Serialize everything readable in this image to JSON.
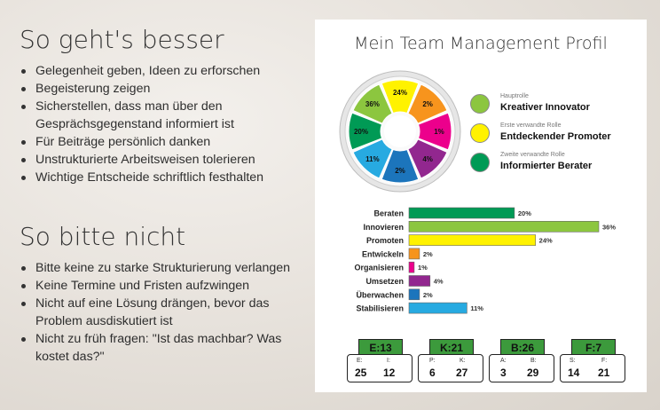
{
  "left": {
    "heading1": "So geht's besser",
    "list1": [
      "Gelegenheit geben, Ideen zu erforschen",
      "Begeisterung zeigen",
      "Sicherstellen, dass man über den Gesprächsgegenstand informiert ist",
      "Für Beiträge persönlich danken",
      "Unstrukturierte Arbeitsweisen tolerieren",
      "Wichtige Entscheide schriftlich festhalten"
    ],
    "heading2": "So bitte nicht",
    "list2": [
      "Bitte keine zu starke Strukturierung verlangen",
      "Keine Termine und Fristen aufzwingen",
      "Nicht auf eine Lösung drängen, bevor  das Problem ausdiskutiert  ist",
      "Nicht zu früh fragen: \"Ist das machbar? Was kostet das?\""
    ]
  },
  "card": {
    "title": "Mein Team Management Profil",
    "legend": [
      {
        "small": "Hauptrolle",
        "main": "Kreativer Innovator",
        "color": "#8cc63f"
      },
      {
        "small": "Erste verwandte Rolle",
        "main": "Entdeckender Promoter",
        "color": "#fff200"
      },
      {
        "small": "Zweite verwandte Rolle",
        "main": "Informierter Berater",
        "color": "#009a55"
      }
    ],
    "wheel": [
      {
        "label": "24%",
        "color": "#fff200"
      },
      {
        "label": "2%",
        "color": "#f7941d"
      },
      {
        "label": "1%",
        "color": "#ec008c"
      },
      {
        "label": "4%",
        "color": "#92278f"
      },
      {
        "label": "2%",
        "color": "#1c75bc"
      },
      {
        "label": "11%",
        "color": "#27aae1"
      },
      {
        "label": "20%",
        "color": "#009a55"
      },
      {
        "label": "36%",
        "color": "#8cc63f"
      }
    ],
    "stats": [
      {
        "head": "E:13",
        "l1": "E:",
        "v1": "25",
        "l2": "I:",
        "v2": "12"
      },
      {
        "head": "K:21",
        "l1": "P:",
        "v1": "6",
        "l2": "K:",
        "v2": "27"
      },
      {
        "head": "B:26",
        "l1": "A:",
        "v1": "3",
        "l2": "B:",
        "v2": "29"
      },
      {
        "head": "F:7",
        "l1": "S:",
        "v1": "14",
        "l2": "F:",
        "v2": "21"
      }
    ]
  },
  "chart_data": {
    "type": "bar",
    "orientation": "horizontal",
    "categories": [
      "Beraten",
      "Innovieren",
      "Promoten",
      "Entwickeln",
      "Organisieren",
      "Umsetzen",
      "Überwachen",
      "Stabilisieren"
    ],
    "values": [
      20,
      36,
      24,
      2,
      1,
      4,
      2,
      11
    ],
    "data_labels": [
      "20%",
      "36%",
      "24%",
      "2%",
      "1%",
      "4%",
      "2%",
      "11%"
    ],
    "colors": [
      "#009a55",
      "#8cc63f",
      "#fff200",
      "#f7941d",
      "#ec008c",
      "#92278f",
      "#1c75bc",
      "#27aae1"
    ],
    "xlim": [
      0,
      36
    ],
    "grid": false
  }
}
